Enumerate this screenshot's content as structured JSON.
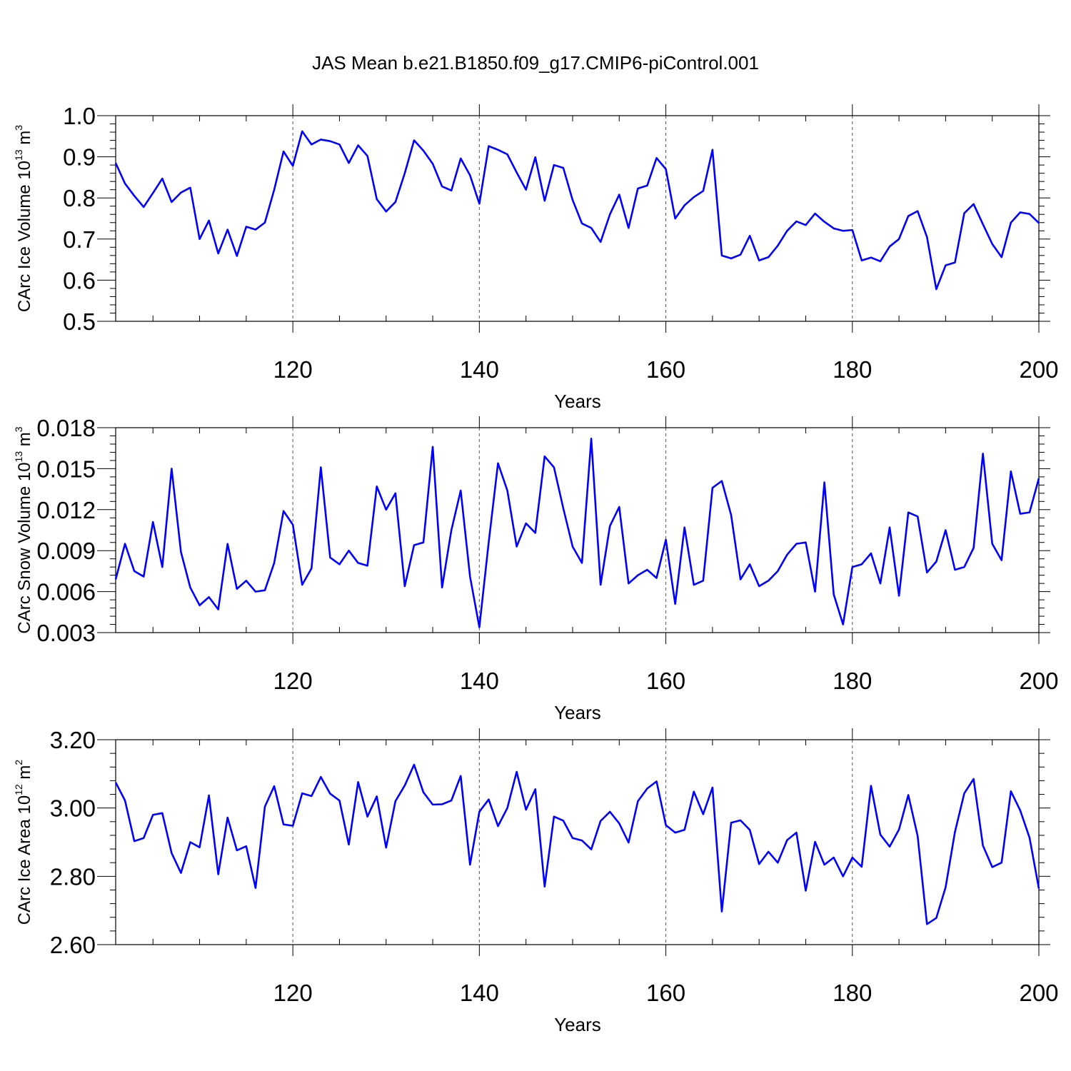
{
  "title": "JAS Mean b.e21.B1850.f09_g17.CMIP6-piControl.001",
  "colors": {
    "line": "#0000ff",
    "axis": "#000000",
    "grid": "#555555"
  },
  "chart_data": [
    {
      "type": "line",
      "title": "JAS Mean b.e21.B1850.f09_g17.CMIP6-piControl.001",
      "xlabel": "Years",
      "ylabel": "CArc Ice Volume 10",
      "ylabel_exp": "13",
      "ylabel_unit": " m",
      "ylabel_unit_exp": "3",
      "xlim": [
        101,
        200
      ],
      "ylim": [
        0.5,
        1.0
      ],
      "xticks": [
        120,
        140,
        160,
        180,
        200
      ],
      "xtick_labels": [
        "120",
        "140",
        "160",
        "180",
        "200"
      ],
      "yticks": [
        0.5,
        0.6,
        0.7,
        0.8,
        0.9,
        1.0
      ],
      "ytick_labels": [
        "0.5",
        "0.6",
        "0.7",
        "0.8",
        "0.9",
        "1.0"
      ],
      "grid": "dashed vertical at major x ticks",
      "x_start": 101,
      "values": [
        0.885,
        0.835,
        0.805,
        0.778,
        0.812,
        0.847,
        0.79,
        0.813,
        0.825,
        0.7,
        0.745,
        0.665,
        0.723,
        0.659,
        0.73,
        0.723,
        0.74,
        0.82,
        0.913,
        0.878,
        0.962,
        0.93,
        0.942,
        0.938,
        0.93,
        0.885,
        0.928,
        0.902,
        0.797,
        0.767,
        0.79,
        0.86,
        0.94,
        0.915,
        0.883,
        0.828,
        0.818,
        0.896,
        0.855,
        0.786,
        0.926,
        0.917,
        0.906,
        0.862,
        0.82,
        0.899,
        0.793,
        0.88,
        0.873,
        0.795,
        0.738,
        0.727,
        0.693,
        0.76,
        0.808,
        0.727,
        0.823,
        0.83,
        0.897,
        0.87,
        0.75,
        0.782,
        0.802,
        0.817,
        0.917,
        0.66,
        0.653,
        0.662,
        0.708,
        0.648,
        0.656,
        0.684,
        0.72,
        0.743,
        0.734,
        0.762,
        0.742,
        0.726,
        0.72,
        0.722,
        0.648,
        0.655,
        0.646,
        0.682,
        0.7,
        0.756,
        0.768,
        0.705,
        0.578,
        0.636,
        0.643,
        0.763,
        0.785,
        0.736,
        0.688,
        0.656,
        0.74,
        0.765,
        0.761,
        0.739
      ]
    },
    {
      "type": "line",
      "xlabel": "Years",
      "ylabel": "CArc Snow Volume 10",
      "ylabel_exp": "13",
      "ylabel_unit": " m",
      "ylabel_unit_exp": "3",
      "xlim": [
        101,
        200
      ],
      "ylim": [
        0.003,
        0.018
      ],
      "xticks": [
        120,
        140,
        160,
        180,
        200
      ],
      "xtick_labels": [
        "120",
        "140",
        "160",
        "180",
        "200"
      ],
      "yticks": [
        0.003,
        0.006,
        0.009,
        0.012,
        0.015,
        0.018
      ],
      "ytick_labels": [
        "0.003",
        "0.006",
        "0.009",
        "0.012",
        "0.015",
        "0.018"
      ],
      "grid": "dashed vertical at major x ticks",
      "x_start": 101,
      "values": [
        0.0069,
        0.0095,
        0.0075,
        0.0071,
        0.0111,
        0.0078,
        0.015,
        0.0089,
        0.0063,
        0.005,
        0.0056,
        0.0047,
        0.0095,
        0.0062,
        0.0068,
        0.006,
        0.0061,
        0.0081,
        0.0119,
        0.0109,
        0.0065,
        0.0077,
        0.0151,
        0.0085,
        0.008,
        0.009,
        0.0081,
        0.0079,
        0.0137,
        0.012,
        0.0132,
        0.0064,
        0.0094,
        0.0096,
        0.0166,
        0.0063,
        0.0105,
        0.0134,
        0.0071,
        0.0034,
        0.0096,
        0.0154,
        0.0134,
        0.0093,
        0.011,
        0.0103,
        0.0159,
        0.0151,
        0.0121,
        0.0093,
        0.0081,
        0.0172,
        0.0065,
        0.0108,
        0.0122,
        0.0066,
        0.0072,
        0.0076,
        0.007,
        0.0098,
        0.0051,
        0.0107,
        0.0065,
        0.0068,
        0.0136,
        0.0141,
        0.0116,
        0.0069,
        0.008,
        0.0064,
        0.0068,
        0.0075,
        0.0087,
        0.0095,
        0.0096,
        0.006,
        0.014,
        0.0058,
        0.0036,
        0.0078,
        0.008,
        0.0088,
        0.0066,
        0.0107,
        0.0057,
        0.0118,
        0.0115,
        0.0074,
        0.0082,
        0.0105,
        0.0076,
        0.0078,
        0.0092,
        0.0161,
        0.0095,
        0.0083,
        0.0148,
        0.0117,
        0.0118,
        0.0143
      ]
    },
    {
      "type": "line",
      "xlabel": "Years",
      "ylabel": "CArc Ice Area 10",
      "ylabel_exp": "12",
      "ylabel_unit": " m",
      "ylabel_unit_exp": "2",
      "xlim": [
        101,
        200
      ],
      "ylim": [
        2.6,
        3.2
      ],
      "xticks": [
        120,
        140,
        160,
        180,
        200
      ],
      "xtick_labels": [
        "120",
        "140",
        "160",
        "180",
        "200"
      ],
      "yticks": [
        2.6,
        2.8,
        3.0,
        3.2
      ],
      "ytick_labels": [
        "2.60",
        "2.80",
        "3.00",
        "3.20"
      ],
      "grid": "dashed vertical at major x ticks",
      "x_start": 101,
      "values": [
        3.075,
        3.022,
        2.903,
        2.912,
        2.98,
        2.985,
        2.868,
        2.81,
        2.9,
        2.885,
        3.037,
        2.806,
        2.972,
        2.876,
        2.888,
        2.766,
        3.004,
        3.064,
        2.952,
        2.948,
        3.043,
        3.035,
        3.091,
        3.042,
        3.022,
        2.893,
        3.076,
        2.975,
        3.034,
        2.884,
        3.02,
        3.066,
        3.127,
        3.046,
        3.01,
        3.011,
        3.022,
        3.094,
        2.834,
        2.989,
        3.025,
        2.947,
        3.0,
        3.106,
        2.995,
        3.055,
        2.77,
        2.975,
        2.963,
        2.912,
        2.905,
        2.879,
        2.962,
        2.989,
        2.955,
        2.899,
        3.02,
        3.057,
        3.078,
        2.95,
        2.928,
        2.936,
        3.048,
        2.982,
        3.06,
        2.697,
        2.957,
        2.964,
        2.936,
        2.836,
        2.872,
        2.84,
        2.906,
        2.928,
        2.758,
        2.901,
        2.834,
        2.855,
        2.8,
        2.855,
        2.828,
        3.065,
        2.922,
        2.887,
        2.937,
        3.038,
        2.918,
        2.66,
        2.678,
        2.768,
        2.93,
        3.043,
        3.085,
        2.89,
        2.827,
        2.84,
        3.049,
        2.993,
        2.913,
        2.764
      ]
    }
  ]
}
